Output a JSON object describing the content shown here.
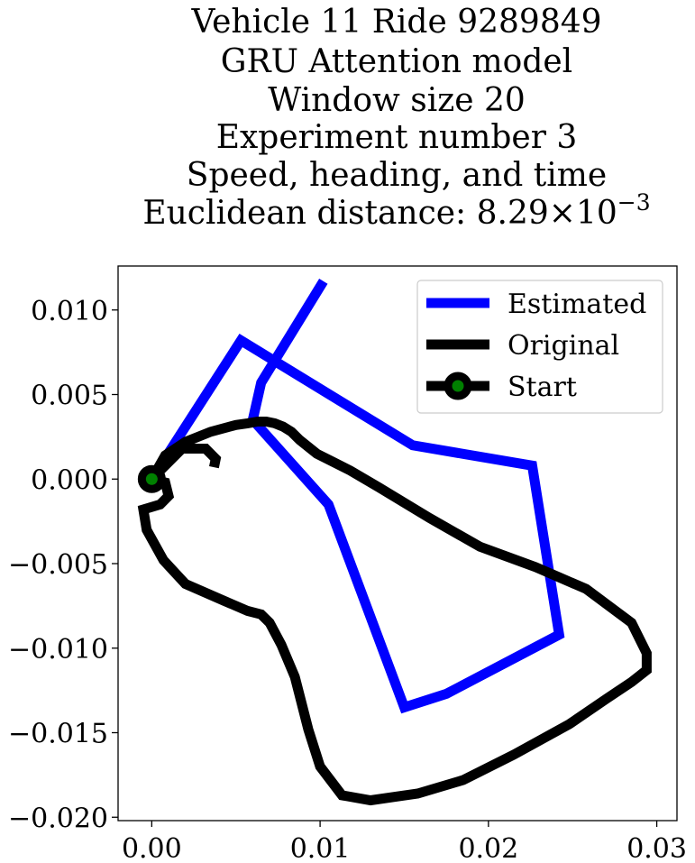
{
  "chart_data": {
    "type": "line",
    "title_lines": [
      "Vehicle 11 Ride 9289849",
      "GRU Attention model",
      "Window size 20",
      "Experiment number 3",
      "Speed, heading, and time"
    ],
    "title_distance_prefix": "Euclidean distance: 8.29",
    "title_distance_times": "×10",
    "title_distance_exponent": "−3",
    "xlim": [
      -0.002,
      0.0312
    ],
    "ylim": [
      -0.0202,
      0.0126
    ],
    "xticks": [
      0.0,
      0.01,
      0.02,
      0.03
    ],
    "xtick_labels": [
      "0.00",
      "0.01",
      "0.02",
      "0.03"
    ],
    "yticks": [
      0.01,
      0.005,
      0.0,
      -0.005,
      -0.01,
      -0.015,
      -0.02
    ],
    "ytick_labels": [
      "0.010",
      "0.005",
      "0.000",
      "−0.005",
      "−0.010",
      "−0.015",
      "−0.020"
    ],
    "grid": false,
    "legend_position": "upper-right",
    "series": [
      {
        "name": "Estimated",
        "color": "#0000ff",
        "x": [
          0.0,
          0.0053,
          0.0155,
          0.0226,
          0.0242,
          0.0175,
          0.015,
          0.0105,
          0.006,
          0.0065,
          0.0102
        ],
        "y": [
          0.0,
          0.0082,
          0.002,
          0.0008,
          -0.0092,
          -0.0127,
          -0.0135,
          -0.0015,
          0.0035,
          0.0057,
          0.0117
        ]
      },
      {
        "name": "Original",
        "color": "#000000",
        "x": [
          0.0,
          0.0008,
          0.001,
          0.0005,
          -0.0005,
          -0.0003,
          0.0007,
          0.002,
          0.0043,
          0.0057,
          0.0065,
          0.007,
          0.0077,
          0.0085,
          0.0093,
          0.01,
          0.0113,
          0.013,
          0.0158,
          0.0185,
          0.0215,
          0.0248,
          0.027,
          0.0285,
          0.0294,
          0.0294,
          0.0285,
          0.0258,
          0.0228,
          0.0195,
          0.0165,
          0.0135,
          0.0118,
          0.0098,
          0.0088,
          0.0083,
          0.0078,
          0.0073,
          0.0068,
          0.0063,
          0.0057,
          0.005,
          0.0035,
          0.002,
          0.0008,
          0.0,
          0.0018,
          0.0032,
          0.0038,
          0.0037
        ],
        "y": [
          0.0,
          -0.0002,
          -0.001,
          -0.0015,
          -0.0018,
          -0.003,
          -0.0048,
          -0.0062,
          -0.0072,
          -0.0078,
          -0.008,
          -0.0085,
          -0.0098,
          -0.0117,
          -0.0148,
          -0.017,
          -0.0187,
          -0.019,
          -0.0186,
          -0.0178,
          -0.0163,
          -0.0145,
          -0.013,
          -0.012,
          -0.0113,
          -0.0103,
          -0.0085,
          -0.0065,
          -0.0052,
          -0.004,
          -0.0023,
          -0.0005,
          0.0005,
          0.0015,
          0.0023,
          0.0028,
          0.0031,
          0.0033,
          0.0034,
          0.0034,
          0.0033,
          0.0032,
          0.0028,
          0.0022,
          0.0014,
          0.0,
          0.0018,
          0.0018,
          0.0012,
          0.0007
        ]
      }
    ],
    "start_marker": {
      "name": "Start",
      "x": 0.0,
      "y": 0.0,
      "edge_color": "#000000",
      "face_color": "#008000"
    }
  }
}
